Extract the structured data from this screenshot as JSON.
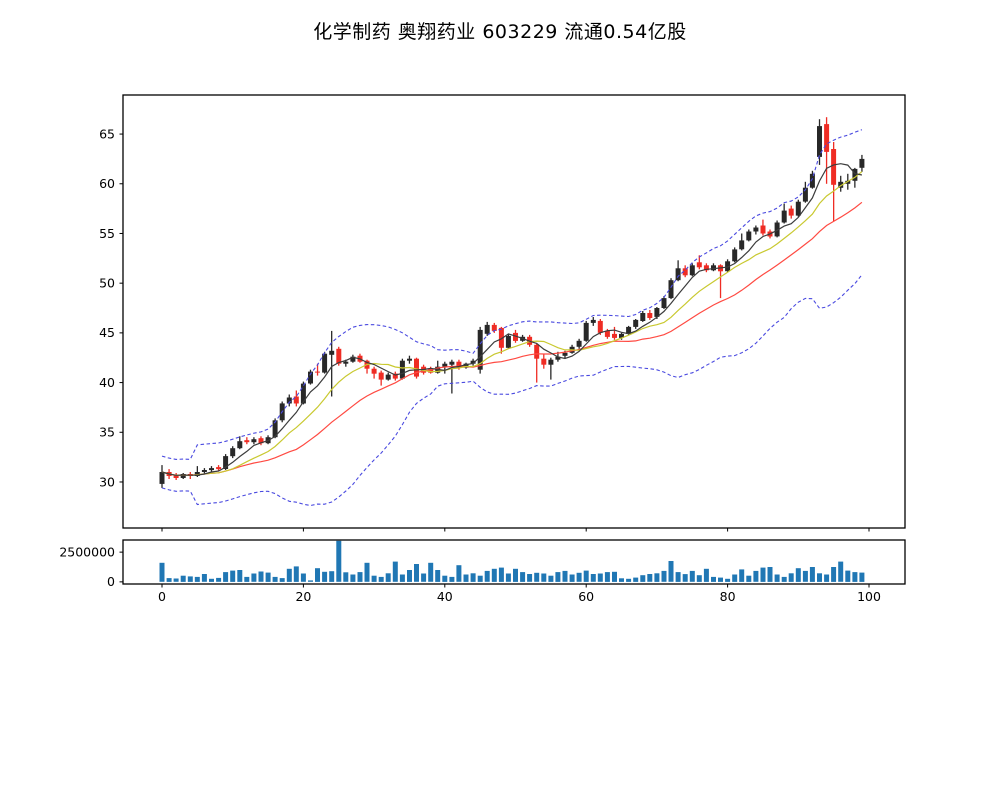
{
  "title": "化学制药 奥翔药业 603229 流通0.54亿股",
  "chart_data": {
    "type": "candlestick",
    "title": "化学制药 奥翔药业 603229 流通0.54亿股",
    "x_ticks": [
      0,
      20,
      40,
      60,
      80,
      100
    ],
    "price_panel": {
      "y_ticks": [
        30,
        35,
        40,
        45,
        50,
        55,
        60,
        65
      ],
      "ylim": [
        25.37,
        68.93
      ],
      "xlim": [
        -5.5,
        105.1
      ],
      "grid": false,
      "ma_windows": {
        "fast": 5,
        "mid": 10,
        "slow": 20
      },
      "band": {
        "window": 20,
        "mult": 2
      }
    },
    "volume_panel": {
      "y_ticks": [
        0,
        2500000
      ],
      "ylim": [
        -180000,
        3520000
      ]
    },
    "ohlc": [
      [
        29.8,
        31.7,
        29.4,
        31.0
      ],
      [
        31.0,
        31.3,
        30.3,
        30.6
      ],
      [
        30.7,
        30.9,
        30.2,
        30.4
      ],
      [
        30.4,
        30.9,
        30.3,
        30.8
      ],
      [
        30.8,
        31.0,
        30.3,
        30.6
      ],
      [
        30.6,
        31.6,
        30.5,
        31.0
      ],
      [
        31.0,
        31.4,
        30.8,
        31.2
      ],
      [
        31.2,
        31.6,
        31.0,
        31.4
      ],
      [
        31.5,
        31.7,
        31.1,
        31.3
      ],
      [
        31.3,
        32.8,
        31.2,
        32.6
      ],
      [
        32.6,
        33.6,
        32.4,
        33.4
      ],
      [
        33.4,
        34.6,
        33.3,
        34.1
      ],
      [
        34.2,
        34.5,
        33.8,
        34.0
      ],
      [
        34.0,
        34.5,
        33.8,
        34.3
      ],
      [
        34.4,
        34.6,
        33.7,
        33.9
      ],
      [
        33.9,
        34.7,
        33.8,
        34.5
      ],
      [
        34.5,
        36.4,
        34.4,
        36.2
      ],
      [
        36.2,
        38.1,
        36.0,
        37.9
      ],
      [
        37.9,
        38.8,
        37.6,
        38.5
      ],
      [
        38.6,
        39.2,
        37.6,
        37.9
      ],
      [
        37.9,
        40.1,
        37.8,
        39.9
      ],
      [
        39.9,
        41.3,
        39.8,
        41.1
      ],
      [
        41.1,
        41.9,
        40.7,
        41.0
      ],
      [
        41.0,
        43.1,
        40.9,
        42.9
      ],
      [
        42.8,
        45.2,
        38.6,
        43.2
      ],
      [
        43.4,
        43.6,
        41.7,
        41.9
      ],
      [
        41.9,
        42.3,
        41.6,
        42.1
      ],
      [
        42.1,
        42.8,
        42.0,
        42.6
      ],
      [
        42.7,
        42.9,
        42.0,
        42.1
      ],
      [
        42.2,
        42.3,
        40.9,
        41.4
      ],
      [
        41.4,
        41.6,
        40.4,
        40.9
      ],
      [
        41.0,
        41.2,
        39.7,
        40.3
      ],
      [
        40.3,
        41.0,
        40.2,
        40.8
      ],
      [
        40.9,
        41.1,
        40.2,
        40.4
      ],
      [
        40.4,
        42.4,
        40.3,
        42.2
      ],
      [
        42.2,
        42.7,
        41.9,
        42.4
      ],
      [
        42.4,
        42.5,
        40.4,
        40.6
      ],
      [
        41.6,
        41.8,
        40.8,
        41.0
      ],
      [
        41.4,
        41.6,
        40.9,
        41.0
      ],
      [
        41.0,
        42.2,
        40.9,
        41.6
      ],
      [
        41.6,
        42.1,
        40.9,
        41.9
      ],
      [
        41.8,
        42.3,
        38.9,
        42.1
      ],
      [
        42.1,
        42.3,
        41.3,
        41.5
      ],
      [
        41.5,
        42.0,
        41.4,
        41.9
      ],
      [
        41.9,
        42.4,
        41.7,
        42.2
      ],
      [
        41.3,
        45.6,
        40.9,
        45.3
      ],
      [
        44.9,
        46.1,
        44.7,
        45.8
      ],
      [
        45.8,
        46.0,
        45.0,
        45.2
      ],
      [
        45.5,
        45.6,
        42.9,
        43.5
      ],
      [
        43.5,
        44.9,
        43.4,
        44.7
      ],
      [
        45.0,
        45.3,
        44.0,
        44.2
      ],
      [
        44.2,
        44.8,
        44.1,
        44.6
      ],
      [
        44.6,
        44.8,
        43.6,
        43.8
      ],
      [
        43.8,
        43.9,
        40.0,
        42.4
      ],
      [
        42.4,
        42.9,
        41.4,
        41.8
      ],
      [
        41.8,
        42.5,
        40.3,
        42.3
      ],
      [
        42.3,
        43.1,
        42.1,
        42.6
      ],
      [
        42.7,
        43.2,
        42.4,
        43.0
      ],
      [
        43.0,
        43.8,
        42.9,
        43.6
      ],
      [
        43.6,
        44.4,
        43.4,
        44.2
      ],
      [
        44.2,
        46.2,
        44.1,
        46.0
      ],
      [
        46.0,
        46.6,
        45.7,
        46.3
      ],
      [
        46.2,
        46.4,
        44.8,
        45.0
      ],
      [
        45.2,
        45.4,
        44.4,
        44.6
      ],
      [
        44.9,
        45.6,
        44.3,
        44.5
      ],
      [
        44.5,
        45.0,
        44.3,
        44.9
      ],
      [
        44.9,
        45.7,
        44.8,
        45.6
      ],
      [
        45.6,
        46.4,
        45.4,
        46.3
      ],
      [
        46.2,
        47.2,
        46.1,
        47.0
      ],
      [
        47.0,
        47.3,
        46.3,
        46.5
      ],
      [
        46.6,
        47.6,
        46.4,
        47.5
      ],
      [
        47.5,
        48.7,
        47.4,
        48.5
      ],
      [
        48.5,
        50.5,
        48.4,
        50.3
      ],
      [
        50.3,
        52.3,
        50.2,
        51.5
      ],
      [
        51.5,
        51.8,
        50.6,
        50.8
      ],
      [
        50.8,
        52.0,
        50.7,
        51.8
      ],
      [
        52.1,
        52.8,
        51.4,
        51.6
      ],
      [
        51.8,
        52.0,
        51.1,
        51.3
      ],
      [
        51.3,
        52.0,
        51.2,
        51.8
      ],
      [
        51.8,
        51.9,
        48.5,
        51.2
      ],
      [
        51.2,
        52.4,
        51.1,
        52.2
      ],
      [
        52.2,
        53.6,
        52.1,
        53.4
      ],
      [
        53.4,
        55.0,
        53.3,
        54.3
      ],
      [
        54.3,
        55.4,
        54.2,
        55.2
      ],
      [
        55.2,
        55.8,
        54.9,
        55.6
      ],
      [
        55.8,
        56.4,
        54.8,
        55.0
      ],
      [
        55.2,
        55.4,
        54.5,
        54.7
      ],
      [
        54.7,
        56.3,
        54.6,
        56.1
      ],
      [
        56.1,
        58.0,
        56.0,
        57.3
      ],
      [
        57.5,
        57.8,
        56.5,
        56.8
      ],
      [
        56.8,
        58.4,
        56.7,
        58.2
      ],
      [
        58.2,
        60.2,
        58.1,
        59.6
      ],
      [
        59.6,
        61.3,
        59.5,
        61.0
      ],
      [
        62.7,
        66.5,
        61.9,
        65.8
      ],
      [
        66.0,
        66.7,
        60.0,
        63.2
      ],
      [
        63.5,
        64.2,
        56.2,
        59.9
      ],
      [
        59.6,
        60.8,
        59.2,
        60.2
      ],
      [
        60.0,
        61.0,
        59.4,
        60.3
      ],
      [
        60.3,
        61.6,
        59.6,
        61.5
      ],
      [
        61.6,
        62.9,
        61.2,
        62.5
      ]
    ],
    "volume": [
      1600000,
      320000,
      280000,
      520000,
      460000,
      420000,
      660000,
      260000,
      330000,
      820000,
      950000,
      1000000,
      420000,
      700000,
      870000,
      780000,
      420000,
      320000,
      1100000,
      1300000,
      700000,
      120000,
      1150000,
      850000,
      900000,
      3450000,
      800000,
      620000,
      820000,
      1600000,
      520000,
      420000,
      720000,
      1700000,
      620000,
      1000000,
      1500000,
      700000,
      1600000,
      1000000,
      520000,
      420000,
      1400000,
      620000,
      720000,
      520000,
      920000,
      1100000,
      1200000,
      700000,
      1100000,
      820000,
      660000,
      760000,
      700000,
      520000,
      820000,
      920000,
      620000,
      760000,
      950000,
      660000,
      700000,
      820000,
      850000,
      300000,
      260000,
      360000,
      560000,
      660000,
      720000,
      920000,
      1750000,
      820000,
      650000,
      920000,
      560000,
      1100000,
      420000,
      360000,
      260000,
      620000,
      1050000,
      520000,
      920000,
      1200000,
      1250000,
      620000,
      420000,
      720000,
      1150000,
      920000,
      1250000,
      720000,
      620000,
      1250000,
      1700000,
      950000,
      820000,
      780000
    ],
    "colors": {
      "up_candle": "#282828",
      "down_candle": "#ef2c24",
      "ma_fast": "#3c3c3c",
      "ma_mid": "#c9c930",
      "ma_slow": "#ff4a42",
      "band": "#4a4ae0",
      "volume_bar": "#2077b4",
      "frame": "#000000"
    }
  }
}
